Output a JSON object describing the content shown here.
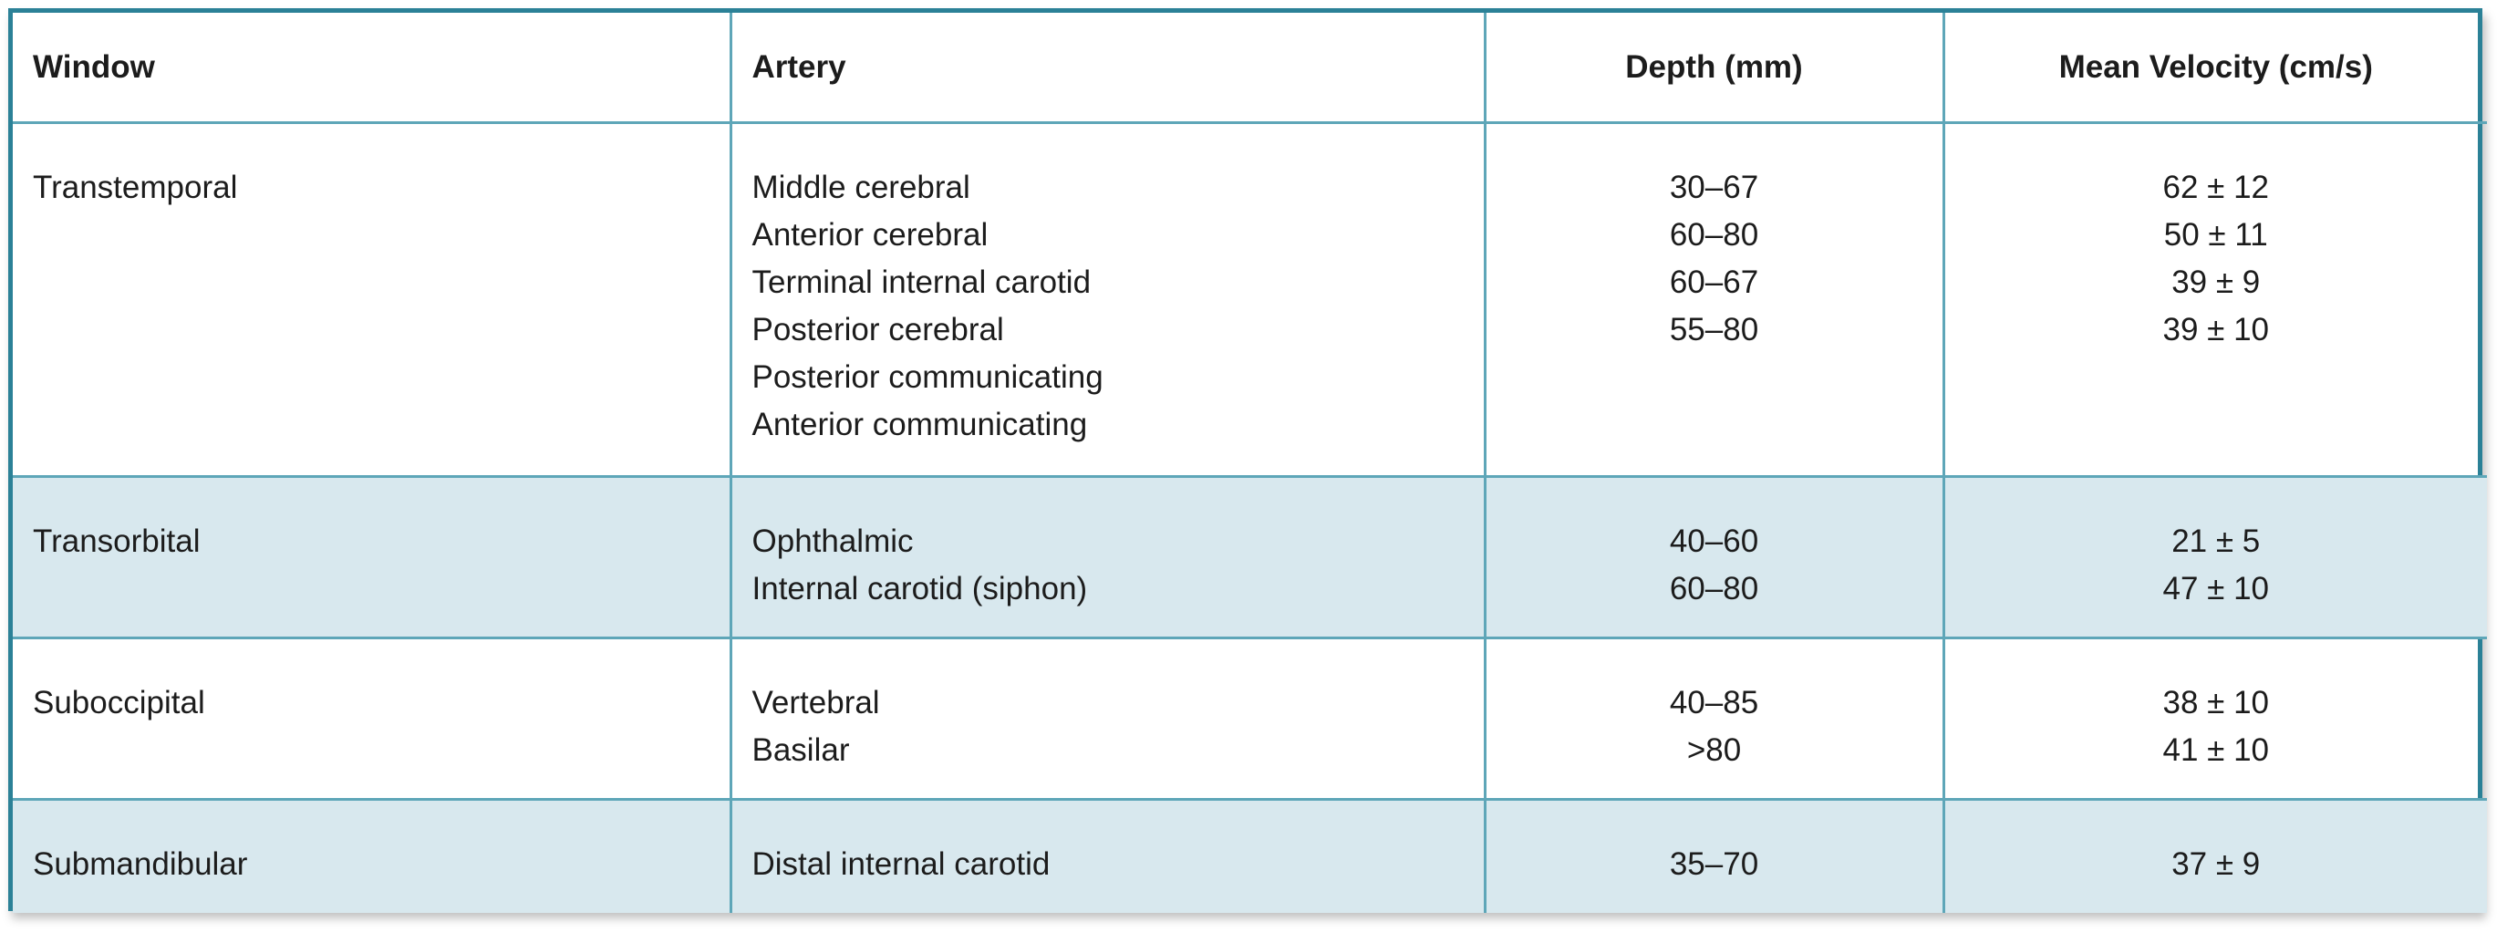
{
  "table": {
    "header": [
      "Window",
      "Artery",
      "Depth (mm)",
      "Mean Velocity (cm/s)"
    ],
    "rows": [
      {
        "window": "Transtemporal",
        "arteries": [
          "Middle cerebral",
          "Anterior cerebral",
          "Terminal internal carotid",
          "Posterior cerebral",
          "Posterior communicating",
          "Anterior communicating"
        ],
        "depths": [
          "30–67",
          "60–80",
          "60–67",
          "55–80"
        ],
        "velocities": [
          "62 ± 12",
          "50 ± 11",
          "39 ± 9",
          "39 ± 10"
        ]
      },
      {
        "window": "Transorbital",
        "arteries": [
          "Ophthalmic",
          "Internal carotid (siphon)"
        ],
        "depths": [
          "40–60",
          "60–80"
        ],
        "velocities": [
          "21 ± 5",
          "47 ± 10"
        ]
      },
      {
        "window": "Suboccipital",
        "arteries": [
          "Vertebral",
          "Basilar"
        ],
        "depths": [
          "40–85",
          ">80"
        ],
        "velocities": [
          "38 ± 10",
          "41 ± 10"
        ]
      },
      {
        "window": "Submandibular",
        "arteries": [
          "Distal internal carotid"
        ],
        "depths": [
          "35–70"
        ],
        "velocities": [
          "37 ± 9"
        ]
      }
    ]
  }
}
